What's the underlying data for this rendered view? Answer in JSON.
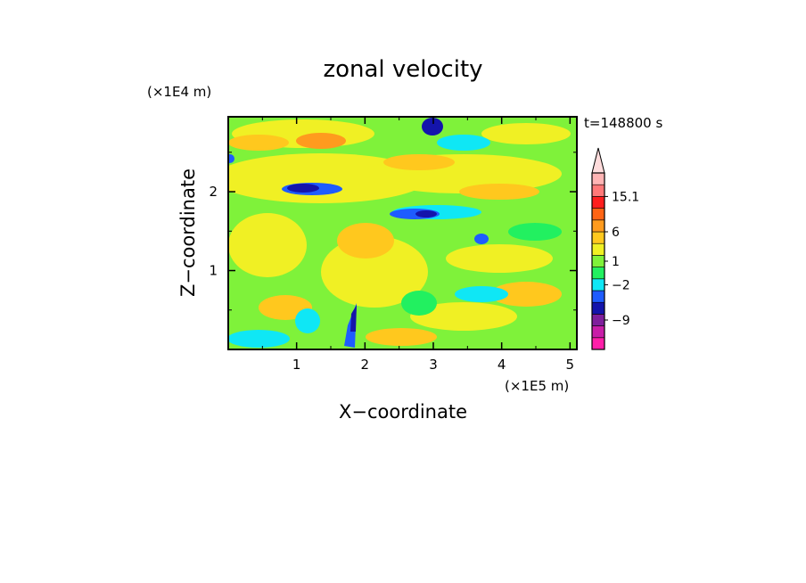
{
  "chart_data": {
    "type": "heatmap",
    "title": "zonal velocity",
    "time_label": "t=148800 s",
    "xlabel": "X−coordinate",
    "ylabel": "Z−coordinate",
    "x_unit": "(×1E5 m)",
    "y_unit": "(×1E4 m)",
    "xlim": [
      0,
      5.1
    ],
    "ylim": [
      0,
      2.95
    ],
    "x_ticks": [
      {
        "v": 1,
        "label": "1"
      },
      {
        "v": 2,
        "label": "2"
      },
      {
        "v": 3,
        "label": "3"
      },
      {
        "v": 4,
        "label": "4"
      },
      {
        "v": 5,
        "label": "5"
      }
    ],
    "y_ticks": [
      {
        "v": 1,
        "label": "1"
      },
      {
        "v": 2,
        "label": "2"
      }
    ],
    "colorbar": {
      "colors": [
        "#ff1fa9",
        "#c81ea8",
        "#7f1f9c",
        "#1414ab",
        "#1e5cff",
        "#0fe7f5",
        "#22f060",
        "#7ff23a",
        "#f0f024",
        "#ffc81e",
        "#ff9b1e",
        "#ff6414",
        "#ff1e1e",
        "#ff7878",
        "#ffb4b4"
      ],
      "arrow_color": "#ffdcdc",
      "labels": [
        {
          "label": "15.1",
          "level": 13
        },
        {
          "label": "6",
          "level": 10
        },
        {
          "label": "1",
          "level": 7.5
        },
        {
          "label": "−2",
          "level": 5.5
        },
        {
          "label": "−9",
          "level": 2.5
        }
      ]
    },
    "field_colors": {
      "background": "#7ff23a",
      "green": "#22f060",
      "cyan": "#0fe7f5",
      "yellow": "#f0f024",
      "gold": "#ffc81e",
      "orange": "#ff9b1e",
      "blue": "#1e5cff",
      "navy": "#1414ab"
    }
  }
}
